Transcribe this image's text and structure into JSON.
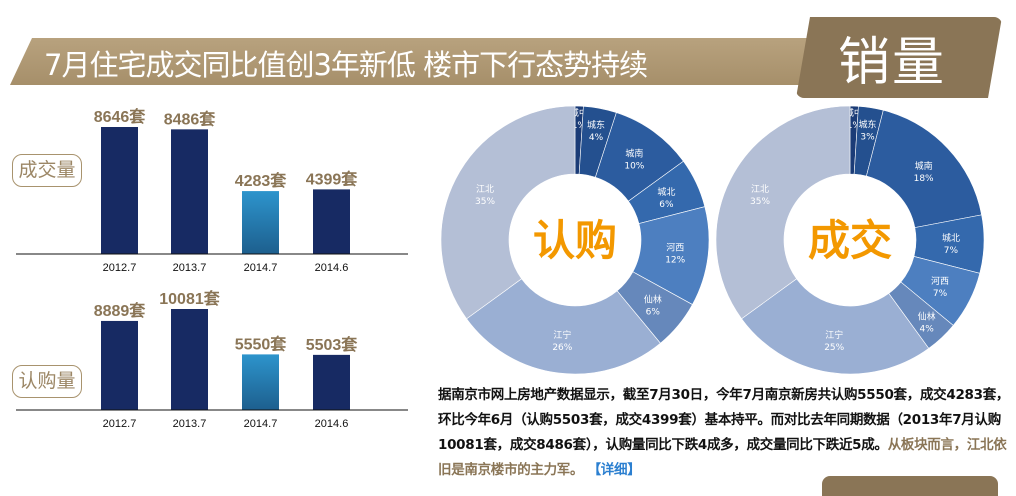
{
  "header": {
    "title": "7月住宅成交同比值创3年新低 楼市下行态势持续",
    "tag": "销量"
  },
  "colors": {
    "banner": "#b09a74",
    "tag": "#8a7556",
    "bar_dark": "#172a63",
    "bar_highlight": "#2a8cc4",
    "value_label": "#8a7556",
    "donut_center": "#f39800",
    "link": "#2b7fd0"
  },
  "chart_data": [
    {
      "type": "bar",
      "label": "成交量",
      "categories": [
        "2012.7",
        "2013.7",
        "2014.7",
        "2014.6"
      ],
      "values": [
        8646,
        8486,
        4283,
        4399
      ],
      "data_labels": [
        "8646套",
        "8486套",
        "4283套",
        "4399套"
      ],
      "highlight_index": 2
    },
    {
      "type": "bar",
      "label": "认购量",
      "categories": [
        "2012.7",
        "2013.7",
        "2014.7",
        "2014.6"
      ],
      "values": [
        8889,
        10081,
        5550,
        5503
      ],
      "data_labels": [
        "8889套",
        "10081套",
        "5550套",
        "5503套"
      ],
      "highlight_index": 2
    },
    {
      "type": "pie",
      "donut": true,
      "center_label": "认购",
      "categories": [
        "城中",
        "城东",
        "城南",
        "城北",
        "河西",
        "仙林",
        "江宁",
        "江北"
      ],
      "values": [
        1,
        4,
        10,
        6,
        12,
        6,
        26,
        35
      ],
      "data_labels": [
        "1%",
        "4%",
        "10%",
        "6%",
        "12%",
        "6%",
        "26%",
        "35%"
      ]
    },
    {
      "type": "pie",
      "donut": true,
      "center_label": "成交",
      "categories": [
        "城中",
        "城东",
        "城南",
        "城北",
        "河西",
        "仙林",
        "江宁",
        "江北"
      ],
      "values": [
        1,
        3,
        18,
        7,
        7,
        4,
        25,
        35
      ],
      "data_labels": [
        "1%",
        "3%",
        "18%",
        "7%",
        "7%",
        "4%",
        "25%",
        "35%"
      ]
    }
  ],
  "article": {
    "text": "据南京市网上房地产数据显示，截至7月30日，今年7月南京新房共认购5550套，成交4283套，环比今年6月（认购5503套，成交4399套）基本持平。而对比去年同期数据（2013年7月认购10081套，成交8486套），认购量同比下跌4成多，成交量同比下跌近5成。",
    "highlight": "从板块而言，江北依旧是南京楼市的主力军。",
    "link": "【详细】"
  }
}
